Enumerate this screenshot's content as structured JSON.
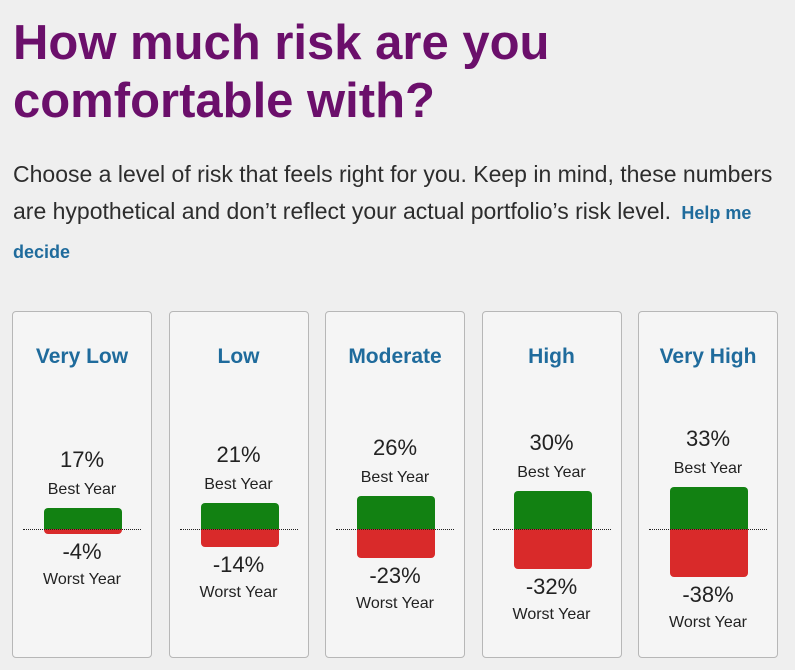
{
  "header": {
    "title": "How much risk are you comfortable with?",
    "description": "Choose a level of risk that feels right for you. Keep in mind, these numbers are hypothetical and don’t reflect your actual portfolio’s risk level.",
    "help_link": "Help me decide"
  },
  "labels": {
    "best_year": "Best Year",
    "worst_year": "Worst Year"
  },
  "risk_levels": [
    {
      "name": "Very Low",
      "best": "17%",
      "worst": "-4%",
      "best_value": 17,
      "worst_value": -4
    },
    {
      "name": "Low",
      "best": "21%",
      "worst": "-14%",
      "best_value": 21,
      "worst_value": -14
    },
    {
      "name": "Moderate",
      "best": "26%",
      "worst": "-23%",
      "best_value": 26,
      "worst_value": -23
    },
    {
      "name": "High",
      "best": "30%",
      "worst": "-32%",
      "best_value": 30,
      "worst_value": -32
    },
    {
      "name": "Very High",
      "best": "33%",
      "worst": "-38%",
      "best_value": 33,
      "worst_value": -38
    }
  ],
  "colors": {
    "title": "#6b0f6b",
    "link": "#1f6b9c",
    "gain": "#128112",
    "loss": "#d92a2a"
  }
}
